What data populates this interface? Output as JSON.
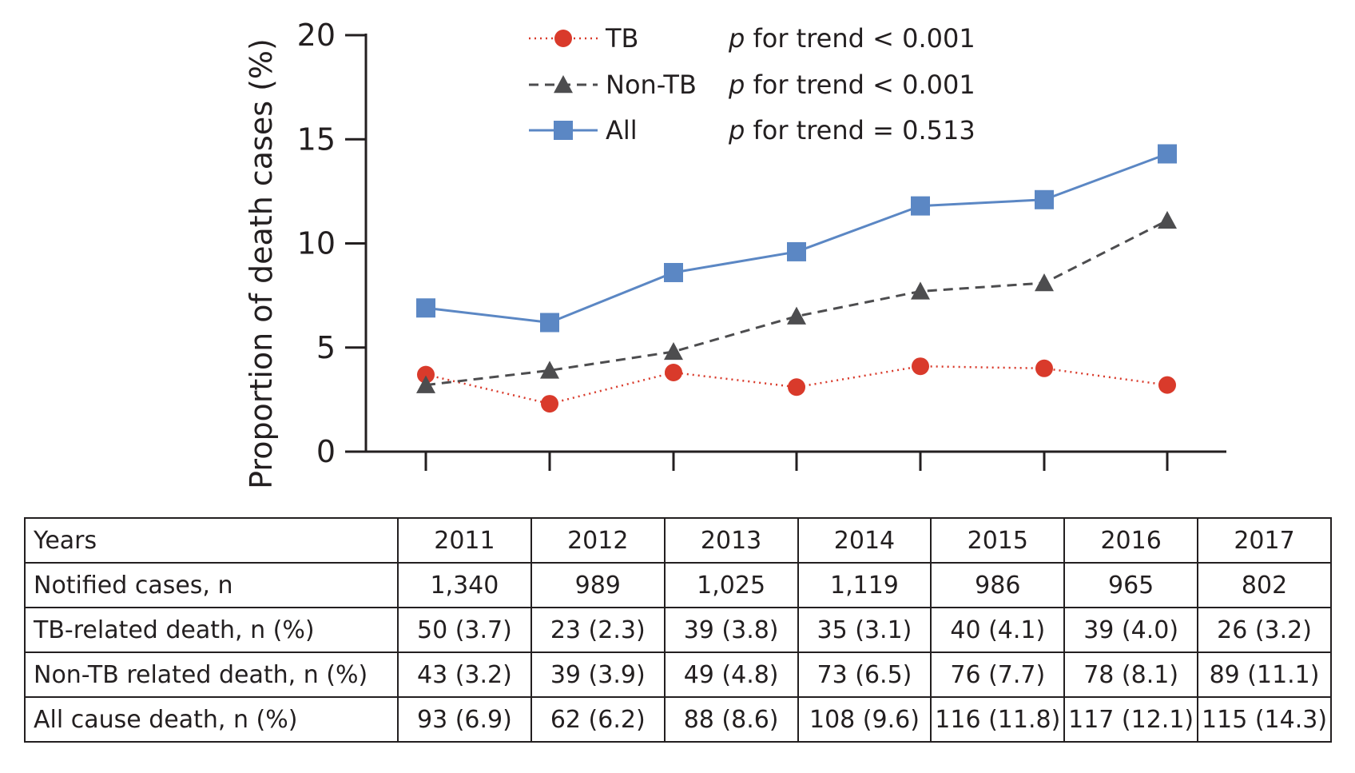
{
  "chart_data": {
    "type": "line",
    "title": "",
    "xlabel": "",
    "ylabel": "Proportion of death cases (%)",
    "ylim": [
      0,
      20
    ],
    "yticks": [
      0,
      5,
      10,
      15,
      20
    ],
    "categories": [
      "2011",
      "2012",
      "2013",
      "2014",
      "2015",
      "2016",
      "2017"
    ],
    "series": [
      {
        "name": "TB",
        "values": [
          3.7,
          2.3,
          3.8,
          3.1,
          4.1,
          4.0,
          3.2
        ],
        "color": "#d93a2b",
        "marker": "circle",
        "linestyle": "dotted",
        "trend": "p for trend < 0.001"
      },
      {
        "name": "Non-TB",
        "values": [
          3.2,
          3.9,
          4.8,
          6.5,
          7.7,
          8.1,
          11.1
        ],
        "color": "#4d4d4f",
        "marker": "triangle",
        "linestyle": "dashed",
        "trend": "p for trend < 0.001"
      },
      {
        "name": "All",
        "values": [
          6.9,
          6.2,
          8.6,
          9.6,
          11.8,
          12.1,
          14.3
        ],
        "color": "#5b87c4",
        "marker": "square",
        "linestyle": "solid",
        "trend": "p for trend = 0.513"
      }
    ],
    "legend_position": "top"
  },
  "table": {
    "header": "Years",
    "years": [
      "2011",
      "2012",
      "2013",
      "2014",
      "2015",
      "2016",
      "2017"
    ],
    "rows": [
      {
        "label": "Notified cases, n",
        "values": [
          "1,340",
          "989",
          "1,025",
          "1,119",
          "986",
          "965",
          "802"
        ]
      },
      {
        "label": "TB-related death, n (%)",
        "values": [
          "50 (3.7)",
          "23 (2.3)",
          "39 (3.8)",
          "35 (3.1)",
          "40 (4.1)",
          "39 (4.0)",
          "26 (3.2)"
        ]
      },
      {
        "label": "Non-TB related death, n (%)",
        "values": [
          "43 (3.2)",
          "39 (3.9)",
          "49 (4.8)",
          "73 (6.5)",
          "76 (7.7)",
          "78 (8.1)",
          "89 (11.1)"
        ]
      },
      {
        "label": "All cause death, n (%)",
        "values": [
          "93 (6.9)",
          "62 (6.2)",
          "88 (8.6)",
          "108 (9.6)",
          "116 (11.8)",
          "117 (12.1)",
          "115 (14.3)"
        ]
      }
    ]
  }
}
